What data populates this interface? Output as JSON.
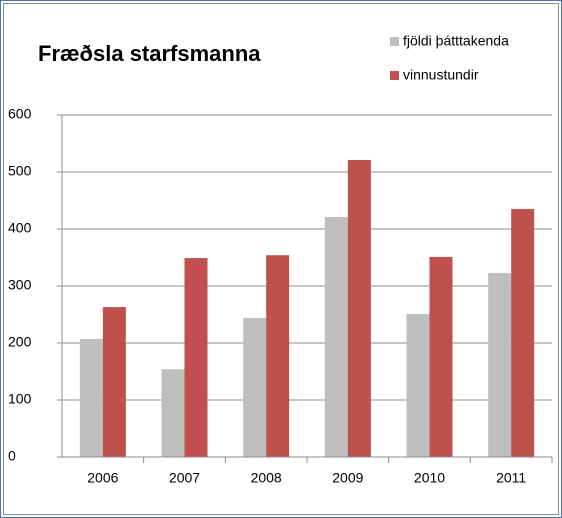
{
  "chart_data": {
    "type": "bar",
    "title": "Fræðsla starfsmanna",
    "categories": [
      "2006",
      "2007",
      "2008",
      "2009",
      "2010",
      "2011"
    ],
    "series": [
      {
        "name": "fjöldi þátttakenda",
        "color": "#bfbfbf",
        "values": [
          207,
          154,
          244,
          421,
          251,
          323
        ]
      },
      {
        "name": "vinnustundir",
        "color": "#c0504d",
        "values": [
          263,
          349,
          354,
          521,
          351,
          435
        ]
      }
    ],
    "ylim": [
      0,
      600
    ],
    "yticks": [
      0,
      100,
      200,
      300,
      400,
      500,
      600
    ],
    "grid": true,
    "legend": "top-right"
  }
}
